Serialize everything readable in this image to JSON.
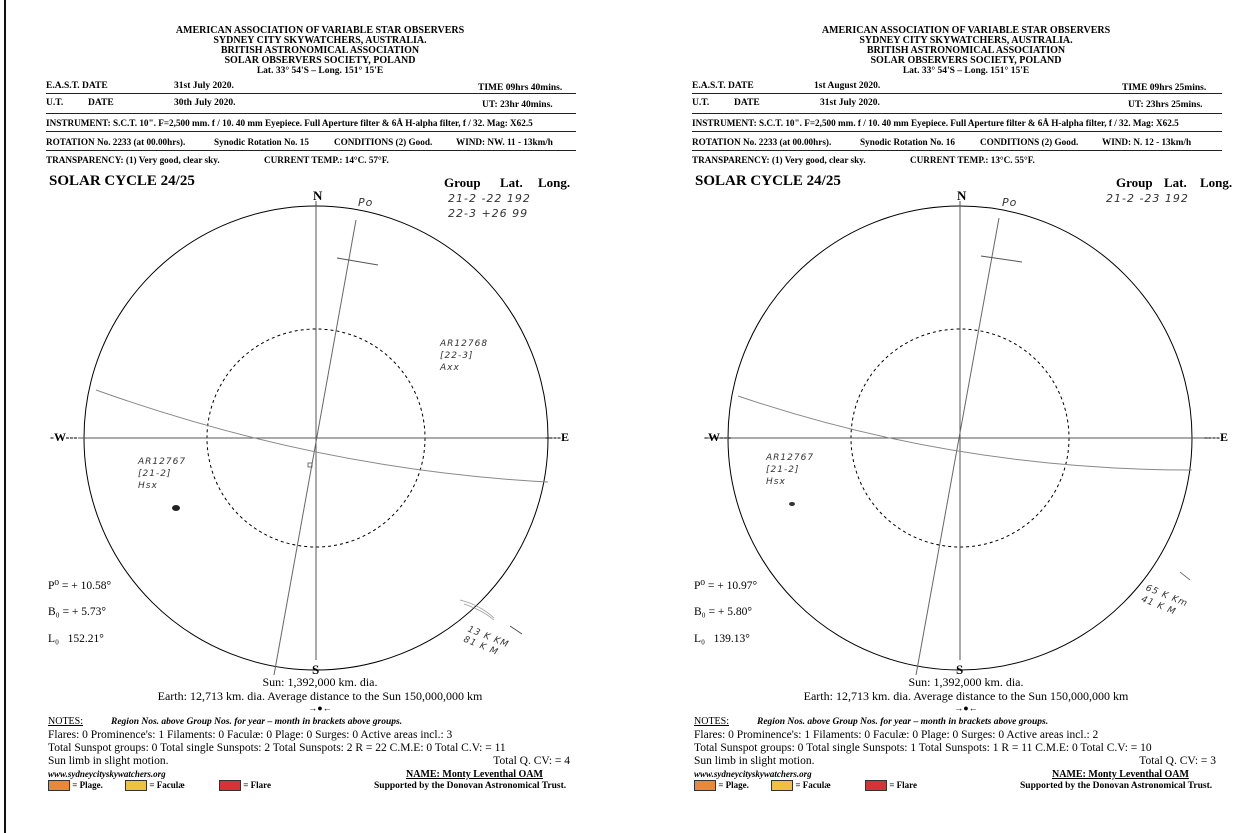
{
  "header_lines": [
    "AMERICAN ASSOCIATION OF VARIABLE STAR OBSERVERS",
    "SYDNEY CITY SKYWATCHERS, AUSTRALIA.",
    "BRITISH ASTRONOMICAL ASSOCIATION",
    "SOLAR OBSERVERS SOCIETY, POLAND"
  ],
  "lat_long": "Lat. 33° 54'S – Long. 151° 15'E",
  "labels": {
    "east_date": "E.A.S.T. DATE",
    "ut": "U.T.",
    "date": "DATE",
    "instrument": "INSTRUMENT: S.C.T. 10\". F=2,500 mm. f / 10. 40 mm Eyepiece. Full Aperture filter & 6Å H-alpha filter, f / 32. Mag: X62.5",
    "solar_cycle": "SOLAR CYCLE 24/25",
    "group": "Group",
    "lat": "Lat.",
    "long": "Long.",
    "north": "N",
    "south": "S",
    "west": "-W---",
    "east": "----E",
    "sun": "Sun: 1,392,000 km. dia.",
    "earth": "Earth: 12,713 km. dia. Average distance to the Sun 150,000,000 km",
    "arrows": "→●←",
    "notes": "NOTES:",
    "notes_info": "Region Nos. above Group Nos. for year – month in brackets above groups.",
    "website": "www.sydneycityskywatchers.org",
    "name": "NAME: Monty Leventhal OAM",
    "plage": "= Plage.",
    "faculae": "= Faculæ",
    "flare": "= Flare",
    "supported": "Supported by the Donovan Astronomical Trust.",
    "po": "P⁰",
    "bo": "B₀",
    "lo": "L₀"
  },
  "colors": {
    "plage": "#e8893a",
    "faculae": "#f0c040",
    "flare": "#d6323a"
  },
  "sheets": [
    {
      "east_date_value": "31st July 2020.",
      "time": "TIME 09hrs 40mins.",
      "ut_date_value": "30th July 2020.",
      "ut_time": "UT: 23hr 40mins.",
      "rotation": "ROTATION No. 2233 (at 00.00hrs).",
      "synodic": "Synodic Rotation No. 15",
      "conditions": "CONDITIONS (2) Good.",
      "wind": "WIND: NW. 11 - 13km/h",
      "transparency": "TRANSPARENCY: (1) Very good, clear sky.",
      "temp": "CURRENT TEMP.: 14°C. 57°F.",
      "p0": "= + 10.58°",
      "b0": "= + 5.73°",
      "l0": "152.21°",
      "groups_handwritten": [
        "21-2   -22  192",
        "22-3  +26   99"
      ],
      "po_mark": "Po",
      "regions": [
        {
          "text": [
            "AR12768",
            "[22-3]",
            "Axx"
          ]
        },
        {
          "text": [
            "AR12767",
            "[21-2]",
            "Hsx"
          ]
        }
      ],
      "wind_note": [
        "13 K KM",
        "81 K M"
      ],
      "notes_line1": "Flares: 0    Prominence's: 1    Filaments: 0    Faculæ: 0    Plage: 0    Surges: 0    Active areas incl.: 3",
      "notes_line2": "Total Sunspot groups: 0  Total single Sunspots: 2   Total Sunspots: 2    R = 22   C.M.E: 0   Total C.V: = 11",
      "notes_line3": "Sun limb in slight motion.",
      "total_q": "Total Q. CV: =   4"
    },
    {
      "east_date_value": "1st August 2020.",
      "time": "TIME 09hrs 25mins.",
      "ut_date_value": "31st July 2020.",
      "ut_time": "UT: 23hrs 25mins.",
      "rotation": "ROTATION No. 2233 (at 00.00hrs).",
      "synodic": "Synodic Rotation No. 16",
      "conditions": "CONDITIONS (2) Good.",
      "wind": "WIND: N. 12 - 13km/h",
      "transparency": "TRANSPARENCY: (1) Very good, clear sky.",
      "temp": "CURRENT TEMP.: 13°C. 55°F.",
      "p0": "= + 10.97°",
      "b0": "= + 5.80°",
      "l0": "139.13°",
      "groups_handwritten": [
        "21-2   -23  192"
      ],
      "po_mark": "Po",
      "regions": [
        {
          "text": [
            "AR12767",
            "[21-2]",
            "Hsx"
          ]
        }
      ],
      "wind_note": [
        "65 K Km",
        "41 K M"
      ],
      "notes_line1": "Flares: 0    Prominence's: 1    Filaments: 0    Faculæ: 0    Plage: 0    Surges: 0    Active areas incl.: 2",
      "notes_line2": "Total Sunspot groups: 0  Total single Sunspots: 1   Total Sunspots: 1    R = 11    C.M.E: 0   Total C.V: = 10",
      "notes_line3": "Sun limb in slight motion.",
      "total_q": "Total Q. CV: =   3"
    }
  ]
}
